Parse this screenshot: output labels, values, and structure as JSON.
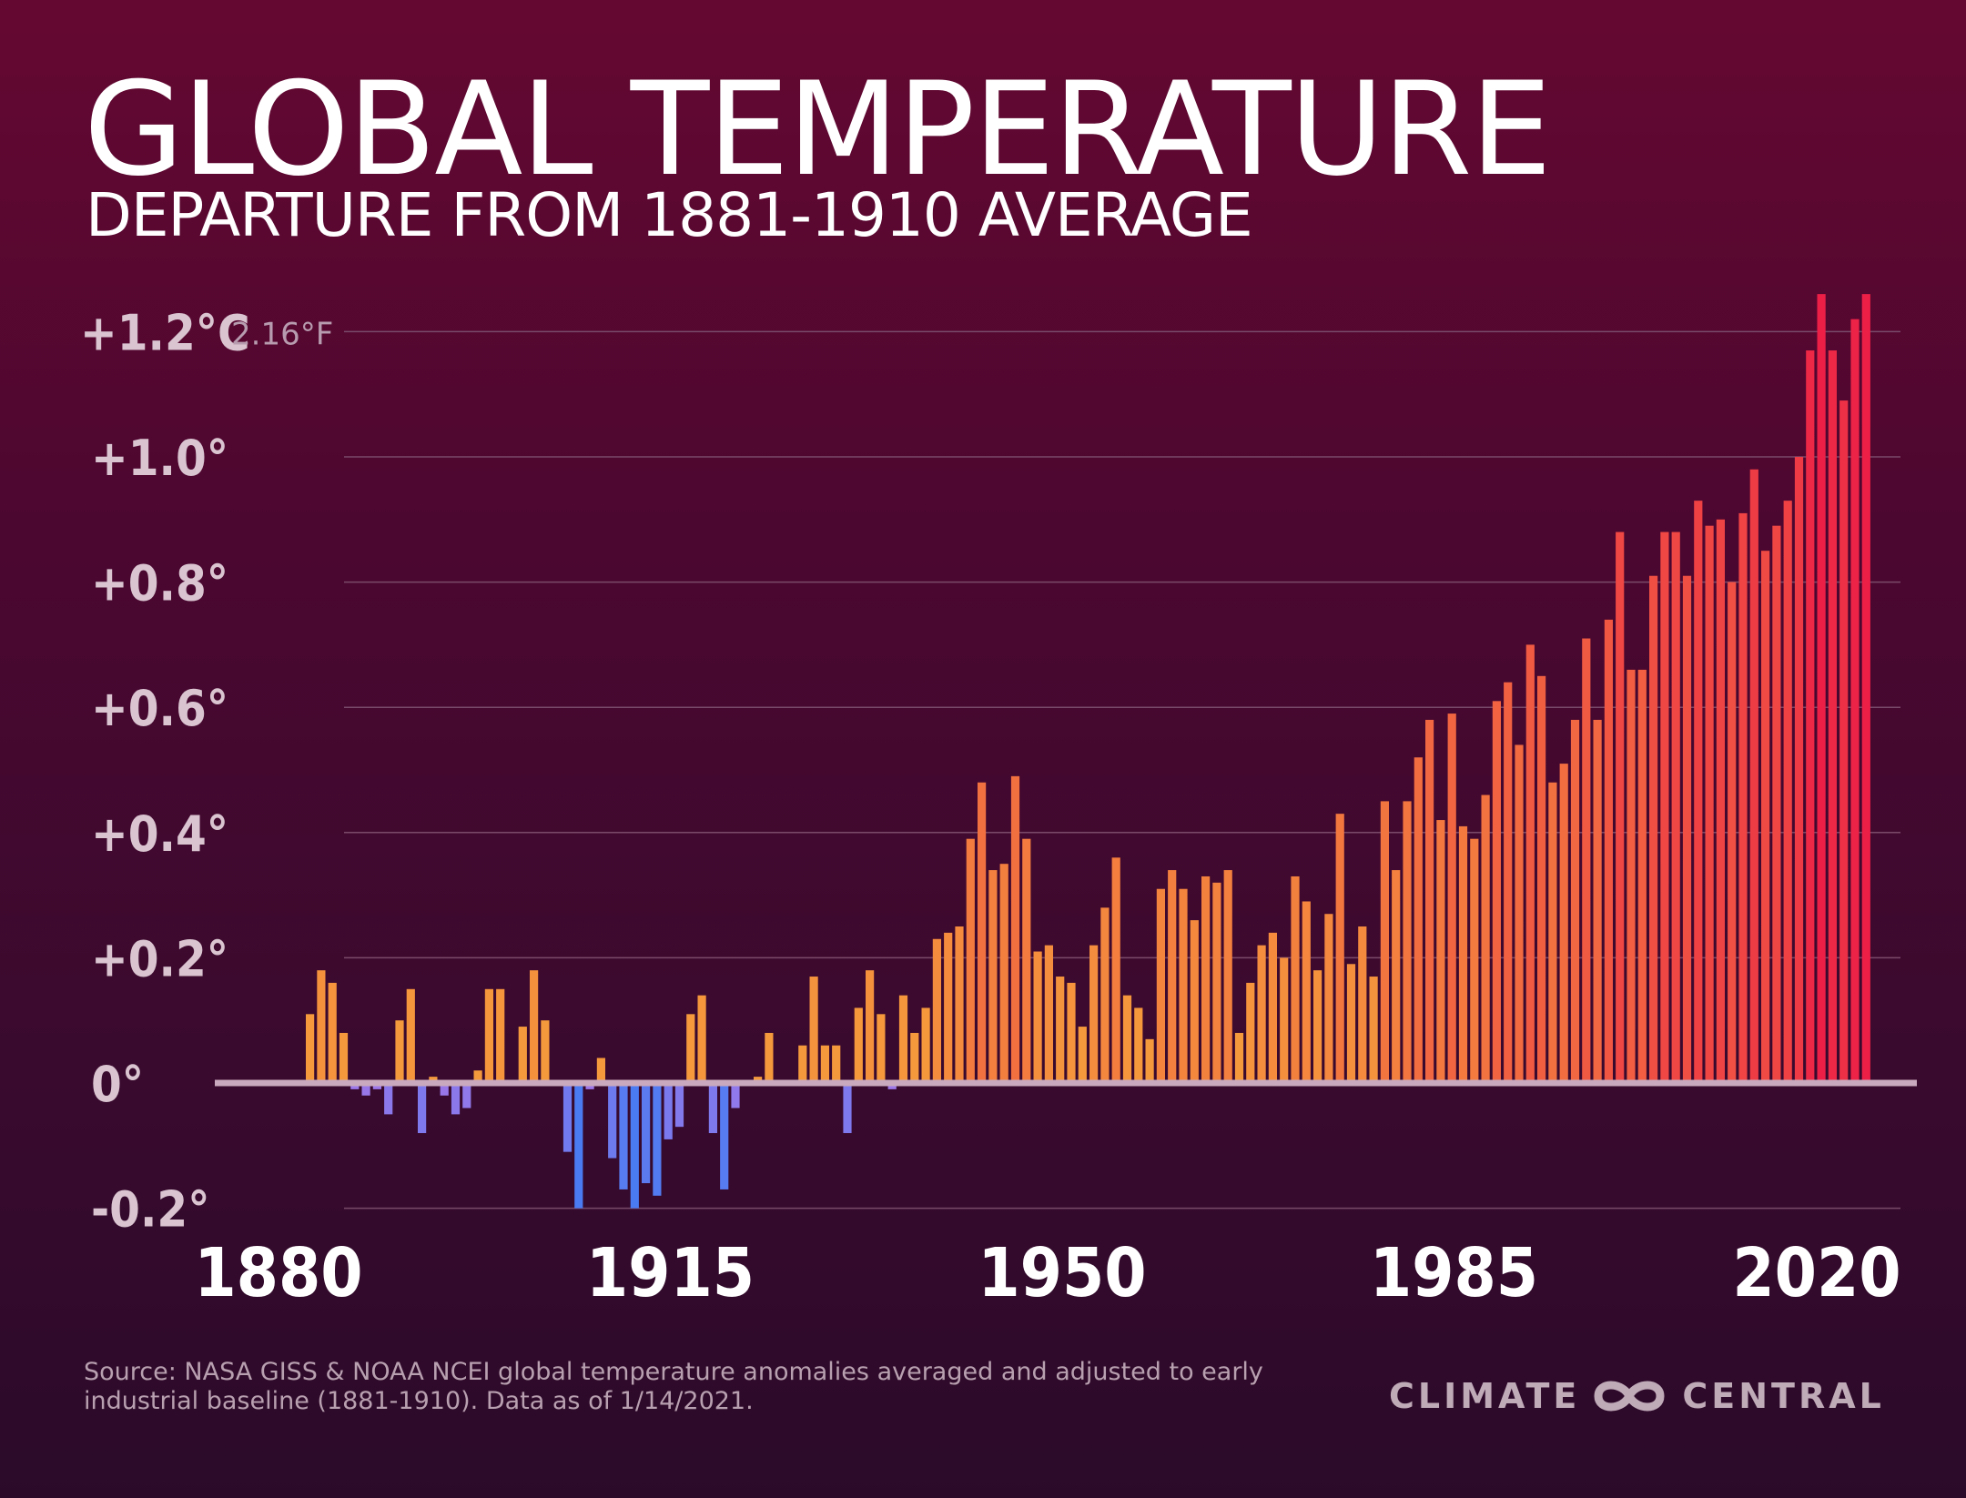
{
  "title": "GLOBAL TEMPERATURE",
  "subtitle": "DEPARTURE FROM 1881-1910 AVERAGE",
  "source": "Source: NASA GISS & NOAA NCEI global temperature anomalies averaged and adjusted to early industrial baseline (1881-1910). Data as of 1/14/2021.",
  "logo": {
    "left": "CLIMATE",
    "right": "CENTRAL",
    "icon": "infinity-loops-icon"
  },
  "colors": {
    "cool_dark": "#4a7bf2",
    "cool_light": "#a178e8",
    "warm_low": "#f59a3c",
    "warm_high": "#ec1f47",
    "zero_line": "#c9a9bd",
    "grid": "#7a4a6a",
    "tick_label": "#d9c4d0"
  },
  "chart_data": {
    "type": "bar",
    "title": "GLOBAL TEMPERATURE",
    "subtitle": "DEPARTURE FROM 1881-1910 AVERAGE",
    "unit": "°C",
    "ylim": [
      -0.2,
      1.2
    ],
    "grid": true,
    "y_ticks": [
      {
        "value": 1.2,
        "label": "+1.2°C",
        "extra": "2.16°F"
      },
      {
        "value": 1.0,
        "label": "+1.0°"
      },
      {
        "value": 0.8,
        "label": "+0.8°"
      },
      {
        "value": 0.6,
        "label": "+0.6°"
      },
      {
        "value": 0.4,
        "label": "+0.4°"
      },
      {
        "value": 0.2,
        "label": "+0.2°"
      },
      {
        "value": 0.0,
        "label": "0°"
      },
      {
        "value": -0.2,
        "label": "-0.2°"
      }
    ],
    "x_ticks": [
      "1880",
      "1915",
      "1950",
      "1985",
      "2020"
    ],
    "x_start": 1880,
    "x_end": 2020,
    "values": [
      0.11,
      0.18,
      0.16,
      0.08,
      -0.01,
      -0.02,
      -0.01,
      -0.05,
      0.1,
      0.15,
      -0.08,
      0.01,
      -0.02,
      -0.05,
      -0.04,
      0.02,
      0.15,
      0.15,
      0.0,
      0.09,
      0.18,
      0.1,
      0.0,
      -0.11,
      -0.2,
      -0.01,
      0.04,
      -0.12,
      -0.17,
      -0.2,
      -0.16,
      -0.18,
      -0.09,
      -0.07,
      0.11,
      0.14,
      -0.08,
      -0.17,
      -0.04,
      0.0,
      0.01,
      0.08,
      0.0,
      0.0,
      0.06,
      0.17,
      0.06,
      0.06,
      -0.08,
      0.12,
      0.18,
      0.11,
      -0.01,
      0.14,
      0.08,
      0.12,
      0.23,
      0.24,
      0.25,
      0.39,
      0.48,
      0.34,
      0.35,
      0.49,
      0.39,
      0.21,
      0.22,
      0.17,
      0.16,
      0.09,
      0.22,
      0.28,
      0.36,
      0.14,
      0.12,
      0.07,
      0.31,
      0.34,
      0.31,
      0.26,
      0.33,
      0.32,
      0.34,
      0.08,
      0.16,
      0.22,
      0.24,
      0.2,
      0.33,
      0.29,
      0.18,
      0.27,
      0.43,
      0.19,
      0.25,
      0.17,
      0.45,
      0.34,
      0.45,
      0.52,
      0.58,
      0.42,
      0.59,
      0.41,
      0.39,
      0.46,
      0.61,
      0.64,
      0.54,
      0.7,
      0.65,
      0.48,
      0.51,
      0.58,
      0.71,
      0.58,
      0.74,
      0.88,
      0.66,
      0.66,
      0.81,
      0.88,
      0.88,
      0.81,
      0.93,
      0.89,
      0.9,
      0.8,
      0.91,
      0.98,
      0.85,
      0.89,
      0.93,
      1.0,
      1.17,
      1.26,
      1.17,
      1.09,
      1.22,
      1.26
    ]
  }
}
